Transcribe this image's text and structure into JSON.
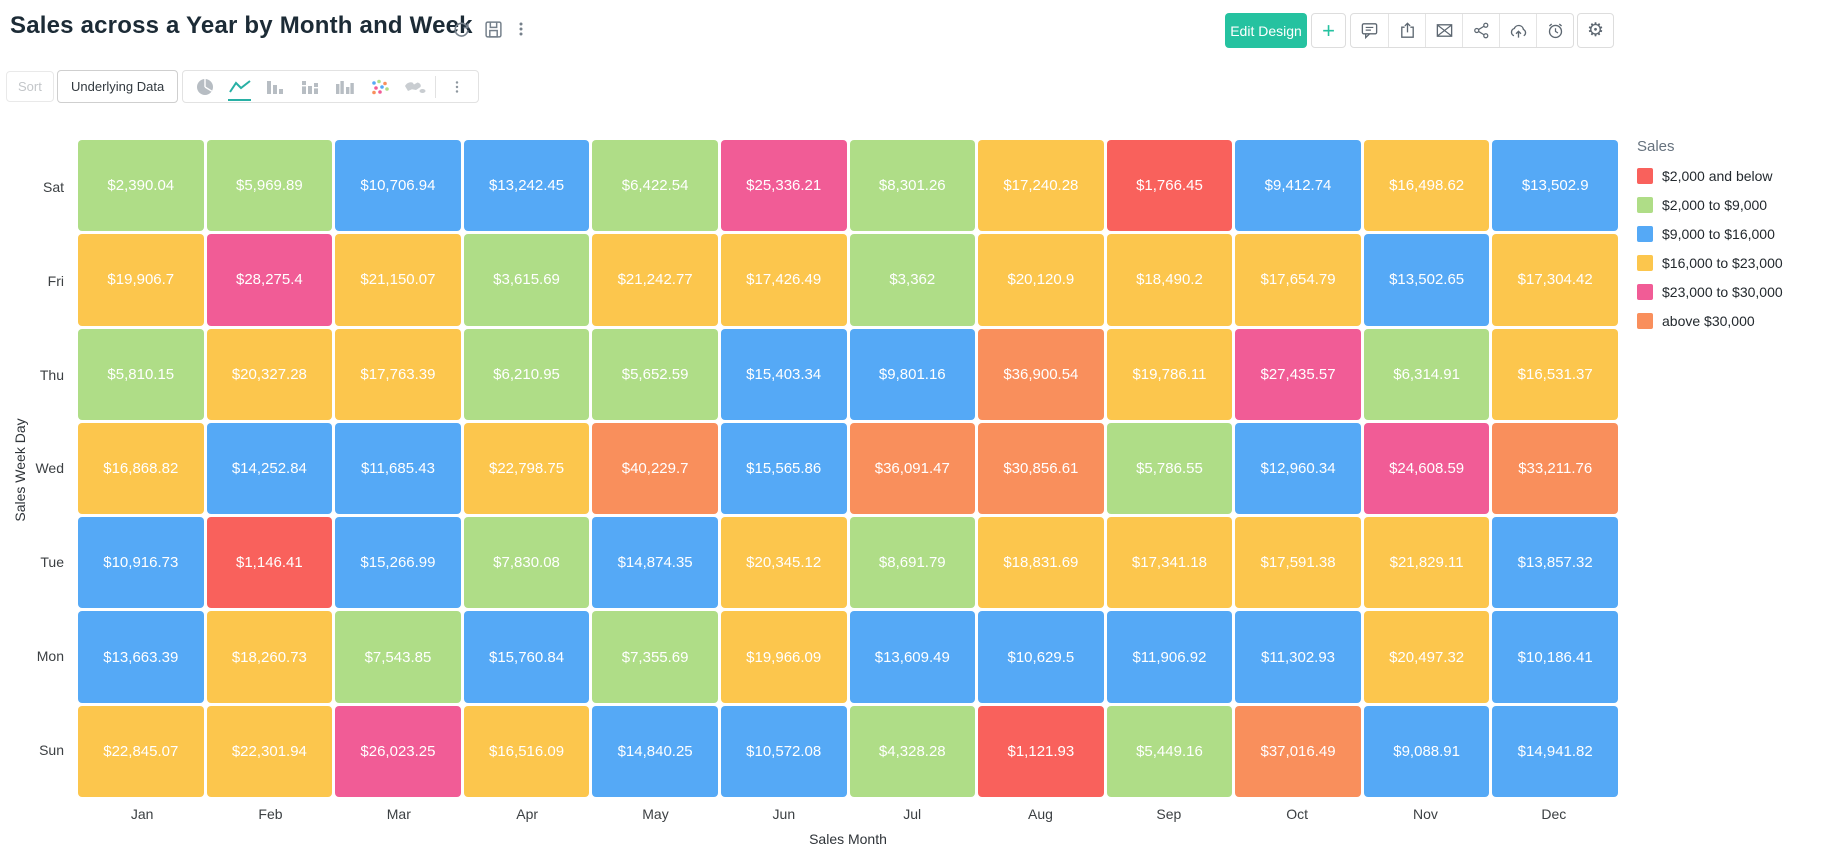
{
  "header": {
    "title": "Sales across a Year by Month and Week",
    "edit_design_label": "Edit Design",
    "add_label": "+",
    "title_actions": [
      "refresh-icon",
      "save-icon",
      "more-options-icon"
    ],
    "action_icons": [
      "comment-icon",
      "export-icon",
      "email-icon",
      "share-icon",
      "publish-cloud-icon",
      "schedule-alarm-icon",
      "settings-gear-icon"
    ],
    "accent_color": "#25C2A0"
  },
  "toolbar": {
    "sort_label": "Sort",
    "underlying_data_label": "Underlying Data",
    "chart_types": [
      "pie-chart",
      "line-chart",
      "bar-chart",
      "stacked-bar-chart",
      "combo-bar-chart",
      "scatter-chart",
      "map-chart",
      "more-chart-types"
    ],
    "selected_chart_type": "line-chart"
  },
  "chart_data": {
    "type": "heatmap",
    "title": "Sales across a Year by Month and Week",
    "xlabel": "Sales Month",
    "ylabel": "Sales Week Day",
    "x_categories": [
      "Jan",
      "Feb",
      "Mar",
      "Apr",
      "May",
      "Jun",
      "Jul",
      "Aug",
      "Sep",
      "Oct",
      "Nov",
      "Dec"
    ],
    "y_categories": [
      "Sat",
      "Fri",
      "Thu",
      "Wed",
      "Tue",
      "Mon",
      "Sun"
    ],
    "value_prefix": "$",
    "legend": {
      "title": "Sales",
      "position": "right",
      "entries": [
        {
          "label": "$2,000 and below",
          "color": "#F9615C",
          "max": 2000
        },
        {
          "label": "$2,000 to $9,000",
          "color": "#AFDD87",
          "max": 9000
        },
        {
          "label": "$9,000 to $16,000",
          "color": "#55A9F6",
          "max": 16000
        },
        {
          "label": "$16,000 to $23,000",
          "color": "#FCC64D",
          "max": 23000
        },
        {
          "label": "$23,000 to $30,000",
          "color": "#F15C96",
          "max": 30000
        },
        {
          "label": "above $30,000",
          "color": "#F98F5C",
          "max": null
        }
      ]
    },
    "series": [
      {
        "name": "Sat",
        "values": [
          2390.04,
          5969.89,
          10706.94,
          13242.45,
          6422.54,
          25336.21,
          8301.26,
          17240.28,
          1766.45,
          9412.74,
          16498.62,
          13502.9
        ]
      },
      {
        "name": "Fri",
        "values": [
          19906.7,
          28275.4,
          21150.07,
          3615.69,
          21242.77,
          17426.49,
          3362,
          20120.9,
          18490.2,
          17654.79,
          13502.65,
          17304.42
        ]
      },
      {
        "name": "Thu",
        "values": [
          5810.15,
          20327.28,
          17763.39,
          6210.95,
          5652.59,
          15403.34,
          9801.16,
          36900.54,
          19786.11,
          27435.57,
          6314.91,
          16531.37
        ]
      },
      {
        "name": "Wed",
        "values": [
          16868.82,
          14252.84,
          11685.43,
          22798.75,
          40229.7,
          15565.86,
          36091.47,
          30856.61,
          5786.55,
          12960.34,
          24608.59,
          33211.76
        ]
      },
      {
        "name": "Tue",
        "values": [
          10916.73,
          1146.41,
          15266.99,
          7830.08,
          14874.35,
          20345.12,
          8691.79,
          18831.69,
          17341.18,
          17591.38,
          21829.11,
          13857.32
        ]
      },
      {
        "name": "Mon",
        "values": [
          13663.39,
          18260.73,
          7543.85,
          15760.84,
          7355.69,
          19966.09,
          13609.49,
          10629.5,
          11906.92,
          11302.93,
          20497.32,
          10186.41
        ]
      },
      {
        "name": "Sun",
        "values": [
          22845.07,
          22301.94,
          26023.25,
          16516.09,
          14840.25,
          10572.08,
          4328.28,
          1121.93,
          5449.16,
          37016.49,
          9088.91,
          14941.82
        ]
      }
    ]
  }
}
